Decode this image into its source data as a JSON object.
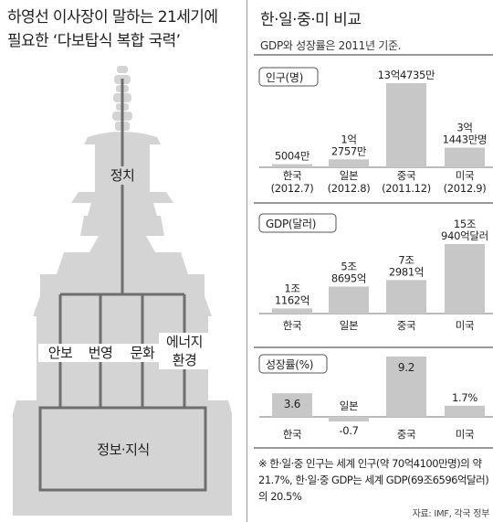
{
  "left": {
    "title_line1": "하영선 이사장이 말하는 21세기에",
    "title_line2": "필요한 ‘다보탑식 복합 국력’",
    "top_label": "정치",
    "pillars": [
      "안보",
      "번영",
      "문화",
      "에너지\n환경"
    ],
    "base_label": "정보·지식"
  },
  "right": {
    "title": "한·일·중·미 비교",
    "subtitle": "GDP와 성장률은 2011년 기준."
  },
  "chart_data": [
    {
      "type": "bar",
      "title": "인구(명)",
      "categories": [
        "한국\n(2012.7)",
        "일본\n(2012.8)",
        "중국\n(2011.12)",
        "미국\n(2012.9)"
      ],
      "values": [
        5004,
        12757,
        134735,
        31443
      ],
      "value_labels": [
        "5004만",
        "1억\n2757만",
        "13억4735만",
        "3억\n1443만명"
      ],
      "unit": "만명"
    },
    {
      "type": "bar",
      "title": "GDP(달러)",
      "categories": [
        "한국",
        "일본",
        "중국",
        "미국"
      ],
      "values": [
        11162,
        58695,
        72981,
        150940
      ],
      "value_labels": [
        "1조\n1162억",
        "5조\n8695억",
        "7조\n2981억",
        "15조\n940억달러"
      ],
      "unit": "억달러"
    },
    {
      "type": "bar",
      "title": "성장률(%)",
      "categories": [
        "한국",
        "일본",
        "중국",
        "미국"
      ],
      "values": [
        3.6,
        -0.7,
        9.2,
        1.7
      ],
      "value_labels": [
        "3.6",
        "-0.7",
        "9.2",
        "1.7%"
      ],
      "unit": "%"
    }
  ],
  "colors": {
    "bar": "#c7c7c7",
    "pagoda_fill": "#d2d2d2",
    "line": "#6e6e6e"
  },
  "footnote": "※ 한·일·중 인구는 세계 인구(약 70억4100만명)의 약 21.7%, 한·일·중 GDP는 세계 GDP(69조6596억달러)의 20.5%",
  "source": "자료: IMF, 각국 정부"
}
